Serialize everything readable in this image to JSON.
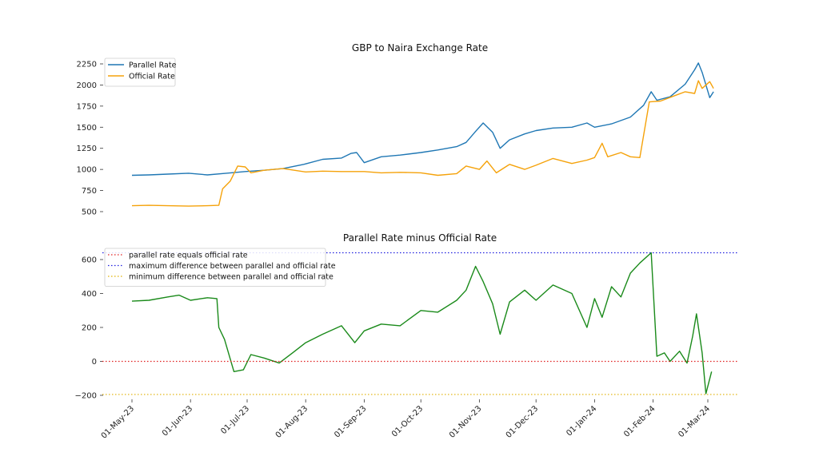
{
  "chart_data": [
    {
      "type": "line",
      "title": "GBP to Naira Exchange Rate",
      "xlabel": "",
      "ylabel": "",
      "ylim": [
        450,
        2300
      ],
      "yticks": [
        500,
        750,
        1000,
        1250,
        1500,
        1750,
        2000,
        2250
      ],
      "legend_location": "top-left",
      "grid": false,
      "series": [
        {
          "name": "Parallel Rate",
          "color": "#1f77b4",
          "points": [
            [
              "2023-05-01",
              930
            ],
            [
              "2023-05-10",
              935
            ],
            [
              "2023-05-20",
              945
            ],
            [
              "2023-05-31",
              955
            ],
            [
              "2023-06-10",
              935
            ],
            [
              "2023-06-20",
              955
            ],
            [
              "2023-06-30",
              975
            ],
            [
              "2023-07-10",
              990
            ],
            [
              "2023-07-20",
              1010
            ],
            [
              "2023-07-31",
              1060
            ],
            [
              "2023-08-10",
              1120
            ],
            [
              "2023-08-20",
              1135
            ],
            [
              "2023-08-25",
              1190
            ],
            [
              "2023-08-28",
              1200
            ],
            [
              "2023-09-01",
              1080
            ],
            [
              "2023-09-10",
              1150
            ],
            [
              "2023-09-20",
              1170
            ],
            [
              "2023-10-01",
              1200
            ],
            [
              "2023-10-10",
              1230
            ],
            [
              "2023-10-20",
              1270
            ],
            [
              "2023-10-25",
              1320
            ],
            [
              "2023-10-30",
              1450
            ],
            [
              "2023-11-03",
              1550
            ],
            [
              "2023-11-08",
              1440
            ],
            [
              "2023-11-12",
              1250
            ],
            [
              "2023-11-17",
              1350
            ],
            [
              "2023-11-25",
              1420
            ],
            [
              "2023-12-01",
              1460
            ],
            [
              "2023-12-10",
              1490
            ],
            [
              "2023-12-20",
              1500
            ],
            [
              "2023-12-28",
              1550
            ],
            [
              "2024-01-01",
              1500
            ],
            [
              "2024-01-10",
              1540
            ],
            [
              "2024-01-20",
              1620
            ],
            [
              "2024-01-27",
              1760
            ],
            [
              "2024-01-31",
              1920
            ],
            [
              "2024-02-03",
              1820
            ],
            [
              "2024-02-10",
              1860
            ],
            [
              "2024-02-18",
              2010
            ],
            [
              "2024-02-23",
              2180
            ],
            [
              "2024-02-25",
              2260
            ],
            [
              "2024-02-27",
              2150
            ],
            [
              "2024-03-02",
              1850
            ],
            [
              "2024-03-04",
              1920
            ]
          ]
        },
        {
          "name": "Official Rate",
          "color": "#f5a20a",
          "points": [
            [
              "2023-05-01",
              570
            ],
            [
              "2023-05-10",
              575
            ],
            [
              "2023-05-20",
              570
            ],
            [
              "2023-05-31",
              565
            ],
            [
              "2023-06-10",
              570
            ],
            [
              "2023-06-16",
              575
            ],
            [
              "2023-06-18",
              770
            ],
            [
              "2023-06-22",
              860
            ],
            [
              "2023-06-26",
              1040
            ],
            [
              "2023-06-30",
              1030
            ],
            [
              "2023-07-03",
              960
            ],
            [
              "2023-07-10",
              990
            ],
            [
              "2023-07-20",
              1010
            ],
            [
              "2023-08-01",
              970
            ],
            [
              "2023-08-10",
              980
            ],
            [
              "2023-08-20",
              975
            ],
            [
              "2023-09-01",
              975
            ],
            [
              "2023-09-10",
              960
            ],
            [
              "2023-09-20",
              965
            ],
            [
              "2023-10-01",
              960
            ],
            [
              "2023-10-10",
              930
            ],
            [
              "2023-10-20",
              950
            ],
            [
              "2023-10-25",
              1040
            ],
            [
              "2023-11-01",
              1000
            ],
            [
              "2023-11-05",
              1100
            ],
            [
              "2023-11-10",
              960
            ],
            [
              "2023-11-17",
              1060
            ],
            [
              "2023-11-25",
              1000
            ],
            [
              "2023-12-01",
              1050
            ],
            [
              "2023-12-10",
              1130
            ],
            [
              "2023-12-20",
              1070
            ],
            [
              "2023-12-28",
              1110
            ],
            [
              "2024-01-01",
              1140
            ],
            [
              "2024-01-05",
              1310
            ],
            [
              "2024-01-08",
              1150
            ],
            [
              "2024-01-15",
              1200
            ],
            [
              "2024-01-20",
              1150
            ],
            [
              "2024-01-25",
              1140
            ],
            [
              "2024-01-30",
              1800
            ],
            [
              "2024-02-05",
              1810
            ],
            [
              "2024-02-12",
              1870
            ],
            [
              "2024-02-18",
              1920
            ],
            [
              "2024-02-23",
              1900
            ],
            [
              "2024-02-25",
              2050
            ],
            [
              "2024-02-27",
              1960
            ],
            [
              "2024-03-02",
              2040
            ],
            [
              "2024-03-04",
              1960
            ]
          ]
        }
      ]
    },
    {
      "type": "line",
      "title": "Parallel Rate minus Official Rate",
      "xlabel": "",
      "ylabel": "",
      "ylim": [
        -215,
        660
      ],
      "yticks": [
        -200,
        0,
        200,
        400,
        600
      ],
      "yticklabels": [
        "−200",
        "0",
        "200",
        "400",
        "600"
      ],
      "xticks": [
        "2023-05-01",
        "2023-06-01",
        "2023-07-01",
        "2023-08-01",
        "2023-09-01",
        "2023-10-01",
        "2023-11-01",
        "2023-12-01",
        "2024-01-01",
        "2024-02-01",
        "2024-03-01"
      ],
      "xticklabels": [
        "01-May-23",
        "01-Jun-23",
        "01-Jul-23",
        "01-Aug-23",
        "01-Sep-23",
        "01-Oct-23",
        "01-Nov-23",
        "01-Dec-23",
        "01-Jan-24",
        "01-Feb-24",
        "01-Mar-24"
      ],
      "legend_location": "top-left",
      "grid": false,
      "series": [
        {
          "name": "difference",
          "color": "#1a8a1a",
          "points": [
            [
              "2023-05-01",
              355
            ],
            [
              "2023-05-10",
              360
            ],
            [
              "2023-05-20",
              380
            ],
            [
              "2023-05-26",
              390
            ],
            [
              "2023-06-01",
              360
            ],
            [
              "2023-06-10",
              375
            ],
            [
              "2023-06-15",
              370
            ],
            [
              "2023-06-16",
              200
            ],
            [
              "2023-06-19",
              130
            ],
            [
              "2023-06-24",
              -60
            ],
            [
              "2023-06-29",
              -50
            ],
            [
              "2023-07-03",
              40
            ],
            [
              "2023-07-10",
              20
            ],
            [
              "2023-07-18",
              -10
            ],
            [
              "2023-07-25",
              50
            ],
            [
              "2023-08-01",
              110
            ],
            [
              "2023-08-10",
              160
            ],
            [
              "2023-08-20",
              210
            ],
            [
              "2023-08-27",
              110
            ],
            [
              "2023-09-01",
              180
            ],
            [
              "2023-09-10",
              220
            ],
            [
              "2023-09-20",
              210
            ],
            [
              "2023-10-01",
              300
            ],
            [
              "2023-10-10",
              290
            ],
            [
              "2023-10-20",
              360
            ],
            [
              "2023-10-25",
              420
            ],
            [
              "2023-10-30",
              560
            ],
            [
              "2023-11-03",
              470
            ],
            [
              "2023-11-08",
              340
            ],
            [
              "2023-11-12",
              160
            ],
            [
              "2023-11-17",
              350
            ],
            [
              "2023-11-25",
              420
            ],
            [
              "2023-12-01",
              360
            ],
            [
              "2023-12-10",
              450
            ],
            [
              "2023-12-20",
              400
            ],
            [
              "2023-12-28",
              200
            ],
            [
              "2024-01-01",
              370
            ],
            [
              "2024-01-05",
              260
            ],
            [
              "2024-01-10",
              440
            ],
            [
              "2024-01-15",
              380
            ],
            [
              "2024-01-20",
              520
            ],
            [
              "2024-01-25",
              580
            ],
            [
              "2024-01-31",
              640
            ],
            [
              "2024-02-03",
              30
            ],
            [
              "2024-02-07",
              50
            ],
            [
              "2024-02-10",
              0
            ],
            [
              "2024-02-15",
              60
            ],
            [
              "2024-02-19",
              -10
            ],
            [
              "2024-02-22",
              150
            ],
            [
              "2024-02-24",
              280
            ],
            [
              "2024-02-27",
              50
            ],
            [
              "2024-02-29",
              -190
            ],
            [
              "2024-03-03",
              -60
            ]
          ]
        },
        {
          "name": "parallel rate equals official rate",
          "color": "#e02020",
          "style": "dotted",
          "hline": 0
        },
        {
          "name": "maximum difference between parallel and official rate",
          "color": "#2020e0",
          "style": "dotted",
          "hline": 640
        },
        {
          "name": "minimum difference between parallel and official rate",
          "color": "#e0b000",
          "style": "dotted",
          "hline": -195
        }
      ]
    }
  ]
}
